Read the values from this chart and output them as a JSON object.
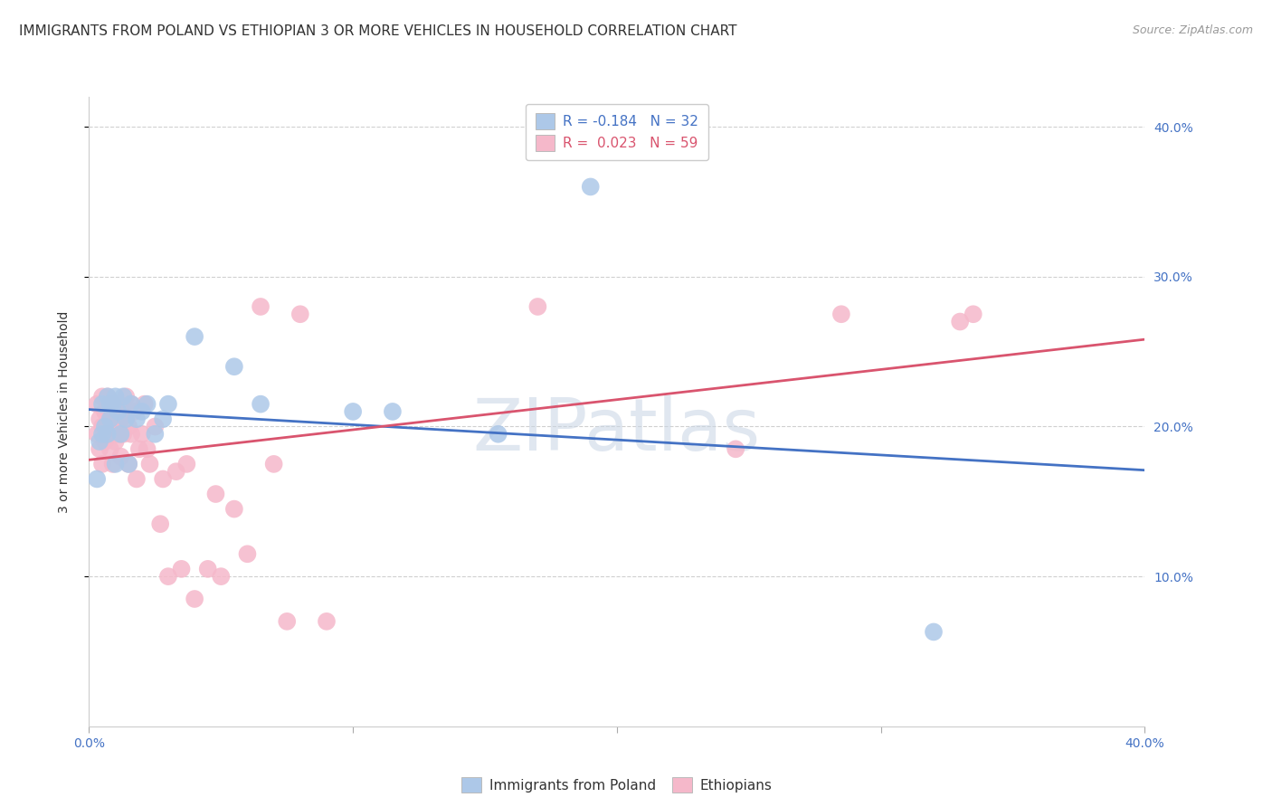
{
  "title": "IMMIGRANTS FROM POLAND VS ETHIOPIAN 3 OR MORE VEHICLES IN HOUSEHOLD CORRELATION CHART",
  "source": "Source: ZipAtlas.com",
  "ylabel": "3 or more Vehicles in Household",
  "xlim": [
    0.0,
    0.4
  ],
  "ylim": [
    0.0,
    0.42
  ],
  "xticks": [
    0.0,
    0.1,
    0.2,
    0.3,
    0.4
  ],
  "xticklabels": [
    "0.0%",
    "",
    "",
    "",
    "40.0%"
  ],
  "yticks_right": [
    0.1,
    0.2,
    0.3,
    0.4
  ],
  "yticklabels_right": [
    "10.0%",
    "20.0%",
    "30.0%",
    "40.0%"
  ],
  "legend_entries": [
    {
      "label_r": "R = ",
      "r_val": "-0.184",
      "label_n": "   N = ",
      "n_val": "32",
      "color": "#adc8e8"
    },
    {
      "label_r": "R =  ",
      "r_val": "0.023",
      "label_n": "   N = ",
      "n_val": "59",
      "color": "#f5b8ca"
    }
  ],
  "legend_labels_bottom": [
    "Immigrants from Poland",
    "Ethiopians"
  ],
  "poland_color": "#adc8e8",
  "ethiopia_color": "#f5b8ca",
  "poland_line_color": "#4472c4",
  "ethiopia_line_color": "#d9546e",
  "poland_x": [
    0.003,
    0.004,
    0.005,
    0.005,
    0.006,
    0.007,
    0.007,
    0.008,
    0.008,
    0.009,
    0.01,
    0.01,
    0.011,
    0.012,
    0.013,
    0.014,
    0.015,
    0.016,
    0.018,
    0.02,
    0.022,
    0.025,
    0.028,
    0.03,
    0.04,
    0.055,
    0.065,
    0.1,
    0.115,
    0.155,
    0.19,
    0.32
  ],
  "poland_y": [
    0.165,
    0.19,
    0.195,
    0.215,
    0.2,
    0.22,
    0.195,
    0.215,
    0.205,
    0.215,
    0.22,
    0.175,
    0.21,
    0.195,
    0.22,
    0.205,
    0.175,
    0.215,
    0.205,
    0.21,
    0.215,
    0.195,
    0.205,
    0.215,
    0.26,
    0.24,
    0.215,
    0.21,
    0.21,
    0.195,
    0.36,
    0.063
  ],
  "ethiopia_x": [
    0.003,
    0.003,
    0.004,
    0.004,
    0.005,
    0.005,
    0.005,
    0.006,
    0.006,
    0.007,
    0.007,
    0.008,
    0.008,
    0.009,
    0.009,
    0.01,
    0.01,
    0.01,
    0.011,
    0.011,
    0.012,
    0.012,
    0.013,
    0.013,
    0.014,
    0.015,
    0.015,
    0.016,
    0.016,
    0.017,
    0.018,
    0.019,
    0.02,
    0.021,
    0.022,
    0.023,
    0.025,
    0.027,
    0.028,
    0.03,
    0.033,
    0.035,
    0.037,
    0.04,
    0.045,
    0.048,
    0.05,
    0.055,
    0.06,
    0.065,
    0.07,
    0.075,
    0.08,
    0.09,
    0.17,
    0.245,
    0.285,
    0.33,
    0.335
  ],
  "ethiopia_y": [
    0.195,
    0.215,
    0.185,
    0.205,
    0.175,
    0.2,
    0.22,
    0.19,
    0.21,
    0.195,
    0.22,
    0.205,
    0.185,
    0.175,
    0.2,
    0.19,
    0.2,
    0.215,
    0.195,
    0.215,
    0.205,
    0.18,
    0.21,
    0.195,
    0.22,
    0.2,
    0.175,
    0.215,
    0.195,
    0.21,
    0.165,
    0.185,
    0.195,
    0.215,
    0.185,
    0.175,
    0.2,
    0.135,
    0.165,
    0.1,
    0.17,
    0.105,
    0.175,
    0.085,
    0.105,
    0.155,
    0.1,
    0.145,
    0.115,
    0.28,
    0.175,
    0.07,
    0.275,
    0.07,
    0.28,
    0.185,
    0.275,
    0.27,
    0.275
  ],
  "watermark": "ZIPatlas",
  "background_color": "#ffffff",
  "grid_color": "#d0d0d0"
}
